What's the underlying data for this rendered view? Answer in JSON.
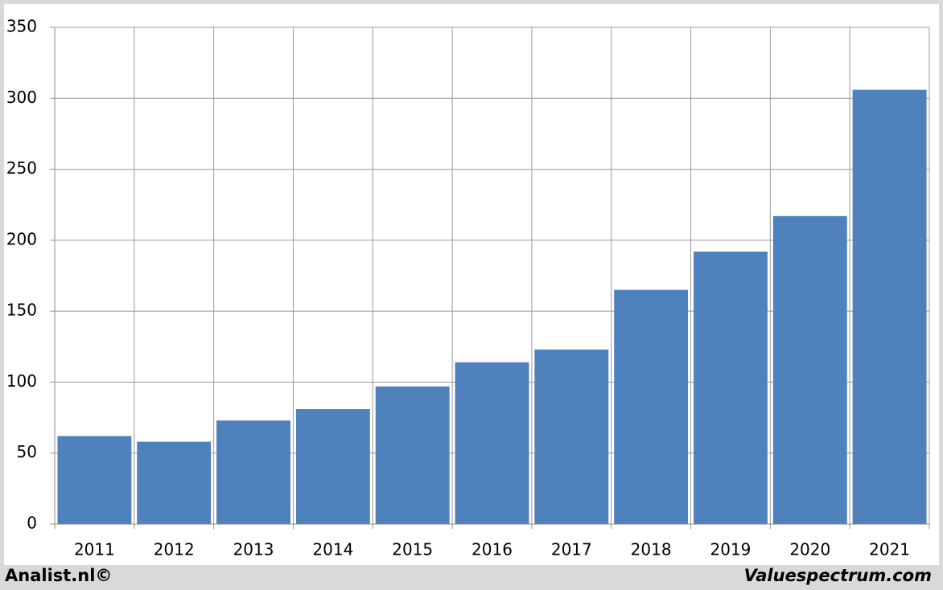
{
  "chart_data": {
    "type": "bar",
    "categories": [
      "2011",
      "2012",
      "2013",
      "2014",
      "2015",
      "2016",
      "2017",
      "2018",
      "2019",
      "2020",
      "2021"
    ],
    "values": [
      62,
      58,
      73,
      81,
      97,
      114,
      123,
      165,
      192,
      217,
      306
    ],
    "color": "#4f81bd",
    "ylim": [
      0,
      350
    ],
    "yticks": [
      0,
      50,
      100,
      150,
      200,
      250,
      300,
      350
    ],
    "grid": true
  },
  "footer": {
    "left": "Analist.nl©",
    "right": "Valuespectrum.com"
  }
}
